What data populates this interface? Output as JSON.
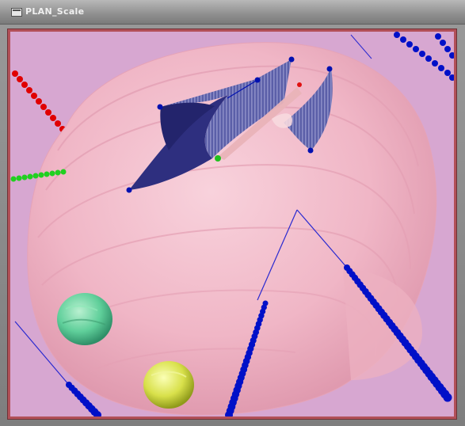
{
  "window": {
    "title": "PLAN_Scale",
    "title_icon": "window-menu-icon"
  },
  "viewport": {
    "label_icon": "3d-view-icon"
  },
  "colors": {
    "background": "#d7a7d1",
    "frame_border": "#b25058",
    "skin_surface": "#f2b9c8",
    "cavity": "#2e2f7f",
    "trajectory": "#0000c0",
    "red_axis": "#e00000",
    "green_axis": "#20d020",
    "target_green": "#5fcf9a",
    "target_yellow": "#d8e04a"
  }
}
